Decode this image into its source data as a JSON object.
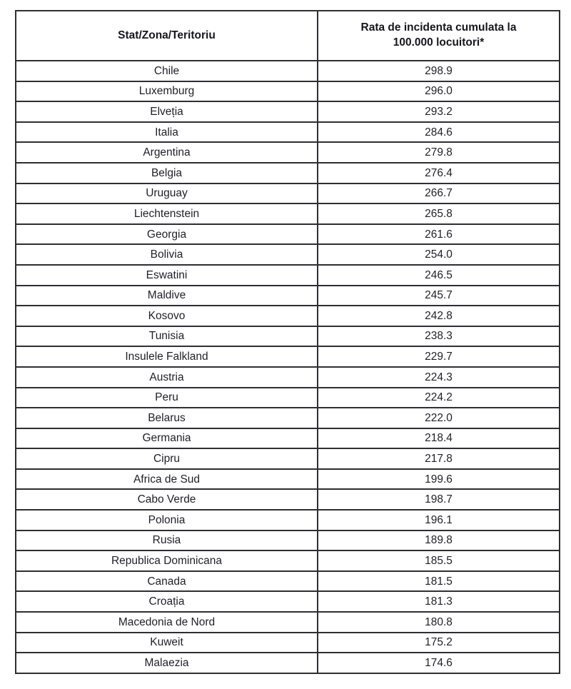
{
  "colors": {
    "background": "#ffffff",
    "border": "#2e2e33",
    "header_text": "#16161f",
    "cell_text": "#1f1f29"
  },
  "table": {
    "columns": [
      {
        "label": "Stat/Zona/Teritoriu"
      },
      {
        "label": "Rata de incidenta cumulata la 100.000 locuitori*"
      }
    ],
    "rows": [
      {
        "country": "Chile",
        "value": "298.9"
      },
      {
        "country": "Luxemburg",
        "value": "296.0"
      },
      {
        "country": "Elveția",
        "value": "293.2"
      },
      {
        "country": "Italia",
        "value": "284.6"
      },
      {
        "country": "Argentina",
        "value": "279.8"
      },
      {
        "country": "Belgia",
        "value": "276.4"
      },
      {
        "country": "Uruguay",
        "value": "266.7"
      },
      {
        "country": "Liechtenstein",
        "value": "265.8"
      },
      {
        "country": "Georgia",
        "value": "261.6"
      },
      {
        "country": "Bolivia",
        "value": "254.0"
      },
      {
        "country": "Eswatini",
        "value": "246.5"
      },
      {
        "country": "Maldive",
        "value": "245.7"
      },
      {
        "country": "Kosovo",
        "value": "242.8"
      },
      {
        "country": "Tunisia",
        "value": "238.3"
      },
      {
        "country": "Insulele Falkland",
        "value": "229.7"
      },
      {
        "country": "Austria",
        "value": "224.3"
      },
      {
        "country": "Peru",
        "value": "224.2"
      },
      {
        "country": "Belarus",
        "value": "222.0"
      },
      {
        "country": "Germania",
        "value": "218.4"
      },
      {
        "country": "Cipru",
        "value": "217.8"
      },
      {
        "country": "Africa de Sud",
        "value": "199.6"
      },
      {
        "country": "Cabo Verde",
        "value": "198.7"
      },
      {
        "country": "Polonia",
        "value": "196.1"
      },
      {
        "country": "Rusia",
        "value": "189.8"
      },
      {
        "country": "Republica Dominicana",
        "value": "185.5"
      },
      {
        "country": "Canada",
        "value": "181.5"
      },
      {
        "country": "Croația",
        "value": "181.3"
      },
      {
        "country": "Macedonia de Nord",
        "value": "180.8"
      },
      {
        "country": "Kuweit",
        "value": "175.2"
      },
      {
        "country": "Malaezia",
        "value": "174.6"
      }
    ]
  }
}
